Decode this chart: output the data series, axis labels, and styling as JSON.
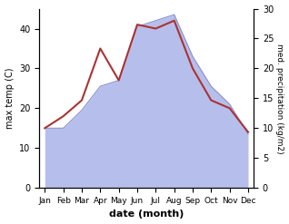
{
  "months": [
    "Jan",
    "Feb",
    "Mar",
    "Apr",
    "May",
    "Jun",
    "Jul",
    "Aug",
    "Sep",
    "Oct",
    "Nov",
    "Dec"
  ],
  "max_temp": [
    15,
    18,
    22,
    35,
    27,
    41,
    40,
    42,
    30,
    22,
    20,
    14
  ],
  "precipitation": [
    10,
    10,
    13,
    17,
    18,
    27,
    28,
    29,
    22,
    17,
    14,
    9
  ],
  "temp_color": "#aa3333",
  "precip_fill_color": "#aab4e8",
  "precip_line_color": "#8890cc",
  "precip_fill_alpha": 0.85,
  "temp_ylim": [
    0,
    45
  ],
  "precip_ylim": [
    0,
    30
  ],
  "ylabel_left": "max temp (C)",
  "ylabel_right": "med. precipitation (kg/m2)",
  "xlabel": "date (month)",
  "left_yticks": [
    0,
    10,
    20,
    30,
    40
  ],
  "right_yticks": [
    0,
    5,
    10,
    15,
    20,
    25,
    30
  ],
  "fig_width": 3.18,
  "fig_height": 2.47,
  "dpi": 100
}
